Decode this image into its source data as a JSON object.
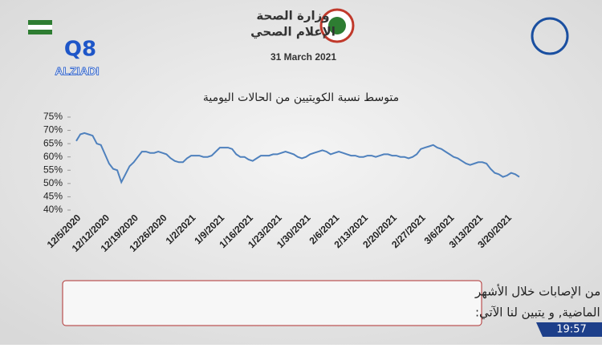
{
  "header": {
    "ministry": "وزارة الصحة",
    "department": "الإعلام الصحي",
    "date": "31 March 2021",
    "logo": "ALZIADI",
    "logo_mark": "Q8"
  },
  "chart_data": {
    "type": "line",
    "title": "متوسط نسبة الكويتيين من الحالات اليومية",
    "categories": [
      "12/5/2020",
      null,
      null,
      null,
      null,
      null,
      null,
      "12/12/2020",
      null,
      null,
      null,
      null,
      null,
      null,
      "12/19/2020",
      null,
      null,
      null,
      null,
      null,
      null,
      "12/26/2020",
      null,
      null,
      null,
      null,
      null,
      null,
      "1/2/2021",
      null,
      null,
      null,
      null,
      null,
      null,
      "1/9/2021",
      null,
      null,
      null,
      null,
      null,
      null,
      "1/16/2021",
      null,
      null,
      null,
      null,
      null,
      null,
      "1/23/2021",
      null,
      null,
      null,
      null,
      null,
      null,
      "1/30/2021",
      null,
      null,
      null,
      null,
      null,
      null,
      "2/6/2021",
      null,
      null,
      null,
      null,
      null,
      null,
      "2/13/2021",
      null,
      null,
      null,
      null,
      null,
      null,
      "2/20/2021",
      null,
      null,
      null,
      null,
      null,
      null,
      "2/27/2021",
      null,
      null,
      null,
      null,
      null,
      null,
      "3/6/2021",
      null,
      null,
      null,
      null,
      null,
      null,
      "3/13/2021",
      null,
      null,
      null,
      null,
      null,
      null,
      "3/20/2021",
      null,
      null,
      null
    ],
    "values": [
      66,
      68.5,
      69,
      68.5,
      68,
      65,
      64.5,
      61,
      57.5,
      55.5,
      55,
      50.5,
      53.5,
      56.5,
      58,
      60,
      62,
      62,
      61.5,
      61.5,
      62,
      61.5,
      61,
      59.5,
      58.5,
      58,
      58,
      59.5,
      60.5,
      60.5,
      60.5,
      60,
      60,
      60.5,
      62,
      63.5,
      63.5,
      63.5,
      63,
      61,
      60,
      60,
      59,
      58.5,
      59.5,
      60.5,
      60.5,
      60.5,
      61,
      61,
      61.5,
      62,
      61.5,
      61,
      60,
      59.5,
      60,
      61,
      61.5,
      62,
      62.5,
      62,
      61,
      61.5,
      62,
      61.5,
      61,
      60.5,
      60.5,
      60,
      60,
      60.5,
      60.5,
      60,
      60.5,
      61,
      61,
      60.5,
      60.5,
      60,
      60,
      59.5,
      60,
      61,
      63,
      63.5,
      64,
      64.5,
      63.5,
      63,
      62,
      61,
      60,
      59.5,
      58.5,
      57.5,
      57,
      57.5,
      58,
      58,
      57.5,
      55.5,
      54,
      53.5,
      52.5,
      53,
      54,
      53.5,
      52.5
    ],
    "color": "#4f81bd",
    "ylim": [
      40,
      75
    ],
    "yticks": [
      {
        "value": 40,
        "label": "40%"
      },
      {
        "value": 45,
        "label": "45%"
      },
      {
        "value": 50,
        "label": "50%"
      },
      {
        "value": 55,
        "label": "55%"
      },
      {
        "value": 60,
        "label": "60%"
      },
      {
        "value": 65,
        "label": "65%"
      },
      {
        "value": 70,
        "label": "70%"
      },
      {
        "value": 75,
        "label": "75%"
      }
    ]
  },
  "caption": {
    "line1": "في الرسم البياني يوضح نسبة المواطنين من الإصابات خلال الأشهر",
    "line2": "القليلة الماضية, و يتبين لنا الآتي:"
  },
  "clock": "19:57"
}
